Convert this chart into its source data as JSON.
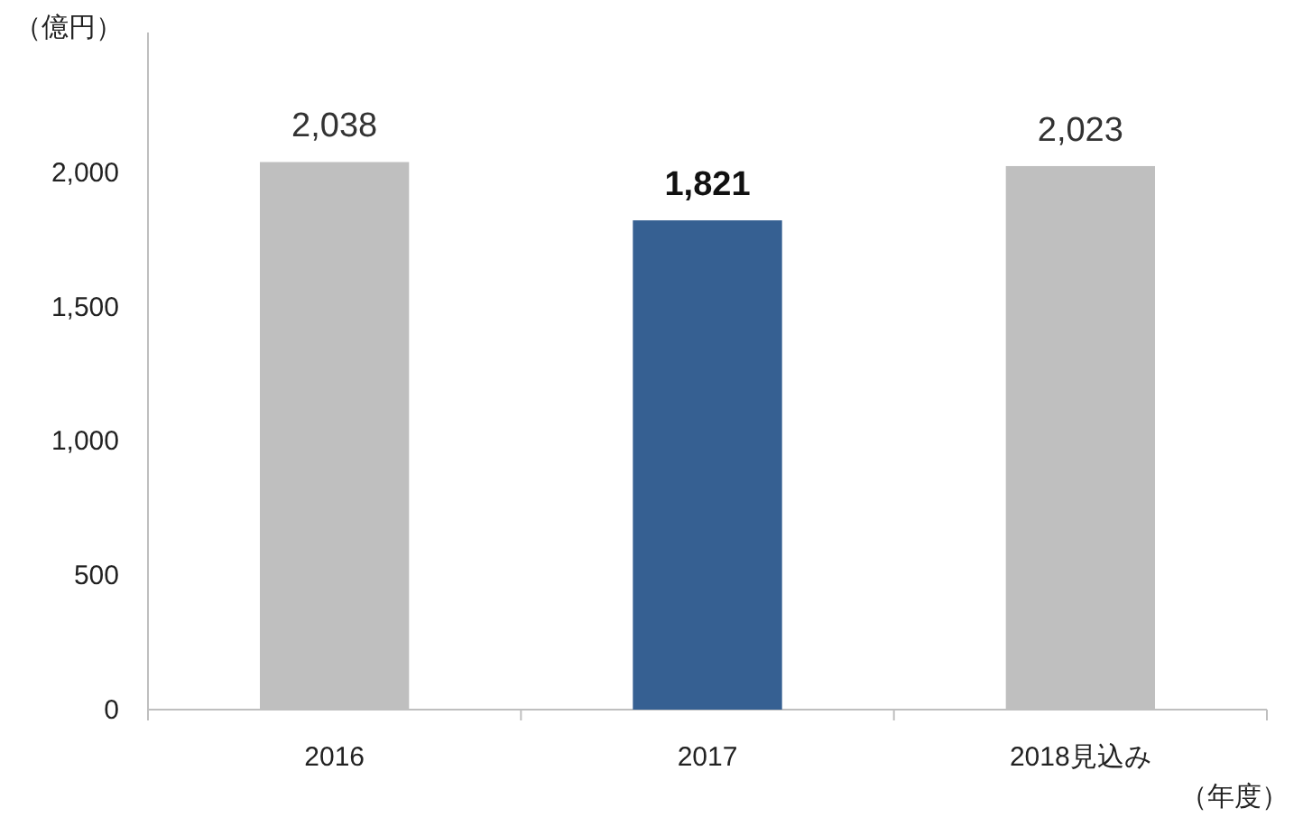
{
  "chart_data": {
    "type": "bar",
    "ylabel": "（億円）",
    "xlabel": "（年度）",
    "categories": [
      "2016",
      "2017",
      "2018見込み"
    ],
    "values": [
      2038,
      1821,
      2023
    ],
    "colors": [
      "#bfbfbf",
      "#366092",
      "#bfbfbf"
    ],
    "value_labels": [
      "2,038",
      "1,821",
      "2,023"
    ],
    "ylim": [
      0,
      2500
    ],
    "yticks": [
      0,
      {
        "value": 500,
        "label": "500"
      },
      {
        "value": 1000,
        "label": "1,000"
      },
      {
        "value": 1500,
        "label": "1,500"
      },
      {
        "value": 2000,
        "label": "2,000"
      }
    ],
    "grid": false
  }
}
